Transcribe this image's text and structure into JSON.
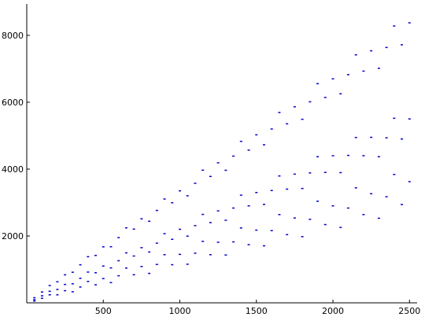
{
  "chart_data": {
    "type": "scatter",
    "color": "#0000cc",
    "xlim": [
      0,
      2550
    ],
    "ylim": [
      0,
      8940
    ],
    "xticks": [
      500,
      1000,
      1500,
      2000,
      2500
    ],
    "yticks": [
      2000,
      4000,
      6000,
      8000
    ],
    "x": [
      50,
      100,
      150,
      200,
      250,
      300,
      350,
      400,
      450,
      500,
      550,
      600,
      650,
      700,
      750,
      800,
      850,
      900,
      950,
      1000,
      1050,
      1100,
      1150,
      1200,
      1250,
      1300,
      1350,
      1400,
      1450,
      1500,
      1550,
      1600,
      1650,
      1700,
      1750,
      1800,
      1850,
      1900,
      1950,
      2000,
      2050,
      2100,
      2150,
      2200,
      2250,
      2300,
      2350,
      2400,
      2450,
      2500,
      50,
      100,
      150,
      200,
      250,
      300,
      350,
      400,
      450,
      500,
      550,
      600,
      650,
      700,
      750,
      800,
      850,
      900,
      950,
      1000,
      1050,
      1100,
      1150,
      1200,
      1250,
      1300,
      1350,
      1400,
      1450,
      1500,
      1550,
      1600,
      1650,
      1700,
      1750,
      1800,
      1850,
      1900,
      1950,
      2000,
      2050,
      2100,
      2150,
      2200,
      2250,
      2300,
      2350,
      2400,
      2450,
      2500,
      50,
      100,
      150,
      200,
      250,
      300,
      350,
      400,
      450,
      500,
      550,
      600,
      650,
      700,
      750,
      800,
      850,
      900,
      950,
      1000,
      1050,
      1100,
      1150,
      1200,
      1250,
      1300,
      1350,
      1400,
      1450,
      1500,
      1550,
      1600,
      1650,
      1700,
      1750,
      1800,
      1850,
      1900,
      1950,
      2000,
      2050,
      2100,
      2150,
      2200,
      2250,
      2300,
      2350,
      2400,
      2450,
      2500
    ],
    "values": [
      153,
      325,
      518,
      630,
      838,
      915,
      1138,
      1380,
      1418,
      1675,
      1678,
      1950,
      2243,
      2205,
      2513,
      2440,
      2763,
      3105,
      2993,
      3350,
      3203,
      3575,
      3968,
      3780,
      4188,
      3965,
      4388,
      4830,
      4568,
      5025,
      4728,
      5200,
      5693,
      5355,
      5863,
      5490,
      6013,
      6555,
      6143,
      6700,
      6253,
      6825,
      7418,
      6930,
      7538,
      7015,
      7638,
      8280,
      7718,
      8375,
      95,
      210,
      345,
      400,
      550,
      570,
      735,
      920,
      900,
      1100,
      1045,
      1260,
      1495,
      1400,
      1650,
      1520,
      1785,
      2070,
      1900,
      2200,
      1995,
      2310,
      2645,
      2400,
      2750,
      2470,
      2835,
      3220,
      2900,
      3300,
      2945,
      3360,
      3795,
      3400,
      3850,
      3420,
      3885,
      4370,
      3900,
      4400,
      3895,
      4410,
      4945,
      4400,
      4950,
      4370,
      4935,
      5520,
      4900,
      5500,
      55,
      135,
      240,
      240,
      363,
      330,
      473,
      640,
      540,
      725,
      605,
      810,
      1040,
      840,
      1088,
      880,
      1148,
      1440,
      1140,
      1450,
      1155,
      1485,
      1840,
      1440,
      1813,
      1430,
      1823,
      2240,
      1740,
      2175,
      1705,
      2160,
      2640,
      2040,
      2538,
      1980,
      2498,
      3040,
      2340,
      2900,
      2255,
      2835,
      3440,
      2640,
      3263,
      2530,
      3173,
      3840,
      2940,
      3625
    ]
  }
}
